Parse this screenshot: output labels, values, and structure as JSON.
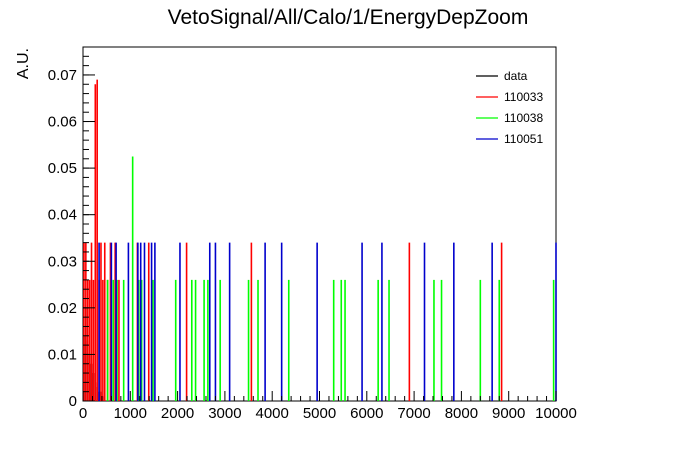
{
  "chart_data": {
    "type": "histogram-lines",
    "title": "VetoSignal/All/Calo/1/EnergyDepZoom",
    "xlabel": "",
    "ylabel": "A.U.",
    "xlim": [
      0,
      10000
    ],
    "ylim": [
      0,
      0.076
    ],
    "x_ticks": [
      "0",
      "1000",
      "2000",
      "3000",
      "4000",
      "5000",
      "6000",
      "7000",
      "8000",
      "9000",
      "10000"
    ],
    "y_ticks": [
      "0",
      "0.01",
      "0.02",
      "0.03",
      "0.04",
      "0.05",
      "0.06",
      "0.07"
    ],
    "legend_position": "top-right",
    "series": [
      {
        "name": "data",
        "color": "#000000",
        "points": [
          {
            "x": 20,
            "y": 0.014
          },
          {
            "x": 60,
            "y": 0.02
          },
          {
            "x": 100,
            "y": 0.013
          },
          {
            "x": 140,
            "y": 0.01
          },
          {
            "x": 180,
            "y": 0.008
          },
          {
            "x": 220,
            "y": 0.006
          },
          {
            "x": 260,
            "y": 0.004
          },
          {
            "x": 300,
            "y": 0.003
          },
          {
            "x": 340,
            "y": 0.002
          },
          {
            "x": 380,
            "y": 0.002
          },
          {
            "x": 420,
            "y": 0.001
          }
        ]
      },
      {
        "name": "110033",
        "color": "#ff0000",
        "points": [
          {
            "x": 20,
            "y": 0.034
          },
          {
            "x": 60,
            "y": 0.034
          },
          {
            "x": 100,
            "y": 0.026
          },
          {
            "x": 140,
            "y": 0.026
          },
          {
            "x": 180,
            "y": 0.034
          },
          {
            "x": 220,
            "y": 0.026
          },
          {
            "x": 260,
            "y": 0.068
          },
          {
            "x": 300,
            "y": 0.069
          },
          {
            "x": 340,
            "y": 0.026
          },
          {
            "x": 380,
            "y": 0.034
          },
          {
            "x": 420,
            "y": 0.026
          },
          {
            "x": 460,
            "y": 0.034
          },
          {
            "x": 520,
            "y": 0.026
          },
          {
            "x": 580,
            "y": 0.034
          },
          {
            "x": 680,
            "y": 0.034
          },
          {
            "x": 760,
            "y": 0.026
          },
          {
            "x": 1150,
            "y": 0.034
          },
          {
            "x": 1390,
            "y": 0.034
          },
          {
            "x": 2190,
            "y": 0.034
          },
          {
            "x": 3560,
            "y": 0.034
          },
          {
            "x": 6900,
            "y": 0.034
          },
          {
            "x": 8850,
            "y": 0.034
          }
        ]
      },
      {
        "name": "110038",
        "color": "#00ff00",
        "points": [
          {
            "x": 520,
            "y": 0.026
          },
          {
            "x": 640,
            "y": 0.026
          },
          {
            "x": 720,
            "y": 0.026
          },
          {
            "x": 860,
            "y": 0.026
          },
          {
            "x": 1050,
            "y": 0.0525
          },
          {
            "x": 1180,
            "y": 0.026
          },
          {
            "x": 1240,
            "y": 0.026
          },
          {
            "x": 1480,
            "y": 0.026
          },
          {
            "x": 1960,
            "y": 0.026
          },
          {
            "x": 2300,
            "y": 0.026
          },
          {
            "x": 2380,
            "y": 0.026
          },
          {
            "x": 2560,
            "y": 0.026
          },
          {
            "x": 2640,
            "y": 0.026
          },
          {
            "x": 2900,
            "y": 0.026
          },
          {
            "x": 3500,
            "y": 0.026
          },
          {
            "x": 3700,
            "y": 0.026
          },
          {
            "x": 4350,
            "y": 0.026
          },
          {
            "x": 5300,
            "y": 0.026
          },
          {
            "x": 5460,
            "y": 0.026
          },
          {
            "x": 5540,
            "y": 0.026
          },
          {
            "x": 6240,
            "y": 0.026
          },
          {
            "x": 6470,
            "y": 0.026
          },
          {
            "x": 7420,
            "y": 0.026
          },
          {
            "x": 7580,
            "y": 0.026
          },
          {
            "x": 8400,
            "y": 0.026
          },
          {
            "x": 8800,
            "y": 0.026
          },
          {
            "x": 9950,
            "y": 0.026
          }
        ]
      },
      {
        "name": "110051",
        "color": "#0000cc",
        "points": [
          {
            "x": 340,
            "y": 0.034
          },
          {
            "x": 600,
            "y": 0.034
          },
          {
            "x": 700,
            "y": 0.034
          },
          {
            "x": 960,
            "y": 0.034
          },
          {
            "x": 1160,
            "y": 0.034
          },
          {
            "x": 1220,
            "y": 0.034
          },
          {
            "x": 1300,
            "y": 0.034
          },
          {
            "x": 1450,
            "y": 0.034
          },
          {
            "x": 1520,
            "y": 0.034
          },
          {
            "x": 2050,
            "y": 0.034
          },
          {
            "x": 2680,
            "y": 0.034
          },
          {
            "x": 2800,
            "y": 0.034
          },
          {
            "x": 3100,
            "y": 0.034
          },
          {
            "x": 3850,
            "y": 0.034
          },
          {
            "x": 4200,
            "y": 0.034
          },
          {
            "x": 4950,
            "y": 0.034
          },
          {
            "x": 5900,
            "y": 0.034
          },
          {
            "x": 6320,
            "y": 0.034
          },
          {
            "x": 7220,
            "y": 0.034
          },
          {
            "x": 7840,
            "y": 0.034
          },
          {
            "x": 8650,
            "y": 0.034
          },
          {
            "x": 10000,
            "y": 0.034
          }
        ]
      }
    ]
  }
}
